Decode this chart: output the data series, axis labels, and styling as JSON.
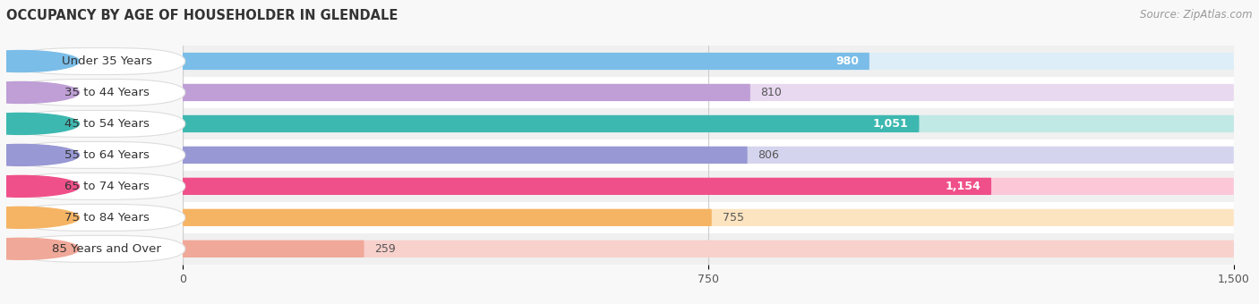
{
  "title": "OCCUPANCY BY AGE OF HOUSEHOLDER IN GLENDALE",
  "source": "Source: ZipAtlas.com",
  "categories": [
    "Under 35 Years",
    "35 to 44 Years",
    "45 to 54 Years",
    "55 to 64 Years",
    "65 to 74 Years",
    "75 to 84 Years",
    "85 Years and Over"
  ],
  "values": [
    980,
    810,
    1051,
    806,
    1154,
    755,
    259
  ],
  "bar_colors": [
    "#7abde8",
    "#bf9fd6",
    "#3db8b0",
    "#9898d4",
    "#f0508a",
    "#f5b464",
    "#f0a898"
  ],
  "bar_bg_colors": [
    "#ddeef8",
    "#e8d8f0",
    "#c0e8e4",
    "#d4d4ee",
    "#fcc8d8",
    "#fde4c0",
    "#f8d0cc"
  ],
  "xlim": [
    0,
    1500
  ],
  "xticks": [
    0,
    750,
    1500
  ],
  "title_fontsize": 10.5,
  "label_fontsize": 9.5,
  "value_fontsize": 9,
  "bar_height": 0.55,
  "background_color": "#f5f5f5",
  "inside_label_threshold": 900,
  "row_bg_colors": [
    "#f0f0f0",
    "#ffffff"
  ]
}
